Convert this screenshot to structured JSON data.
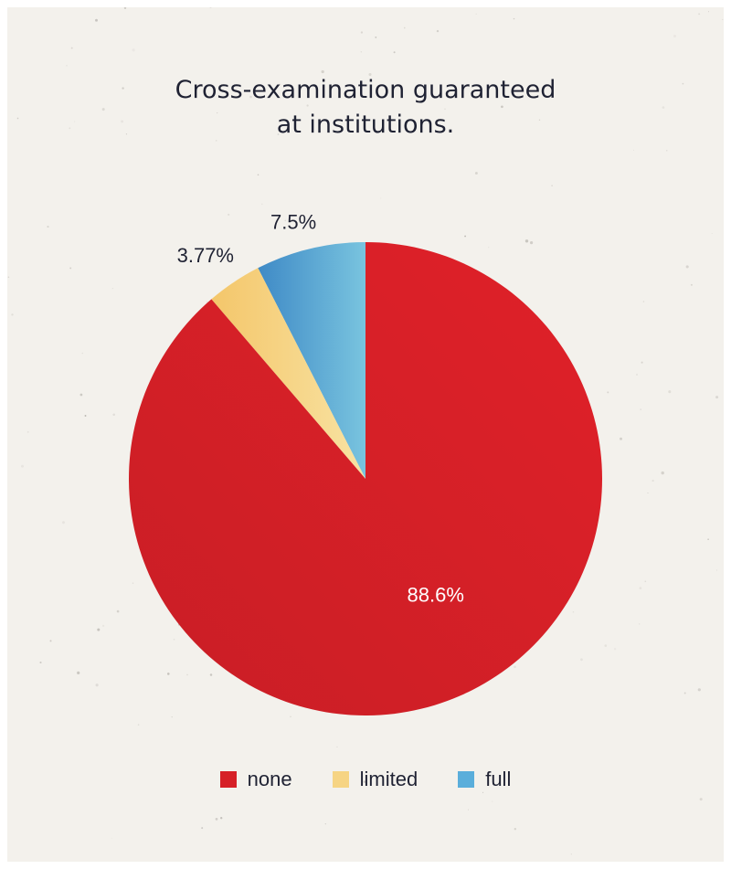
{
  "title_lines": [
    "Cross-examination guaranteed",
    "at institutions."
  ],
  "colors": {
    "background": "#f3f1ec",
    "none": "#d62027",
    "limited": "#f6d483",
    "full": "#5aaedb",
    "title": "#1f2233"
  },
  "chart_data": {
    "type": "pie",
    "title": "Cross-examination guaranteed at institutions.",
    "categories": [
      "none",
      "limited",
      "full"
    ],
    "values": [
      88.6,
      3.77,
      7.5
    ],
    "labels": [
      "88.6%",
      "3.77%",
      "7.5%"
    ],
    "start": "12 o'clock, counterclockwise from full",
    "legend": "bottom"
  },
  "legend": [
    {
      "label": "none",
      "color": "#d62027"
    },
    {
      "label": "limited",
      "color": "#f6d483"
    },
    {
      "label": "full",
      "color": "#5aaedb"
    }
  ]
}
